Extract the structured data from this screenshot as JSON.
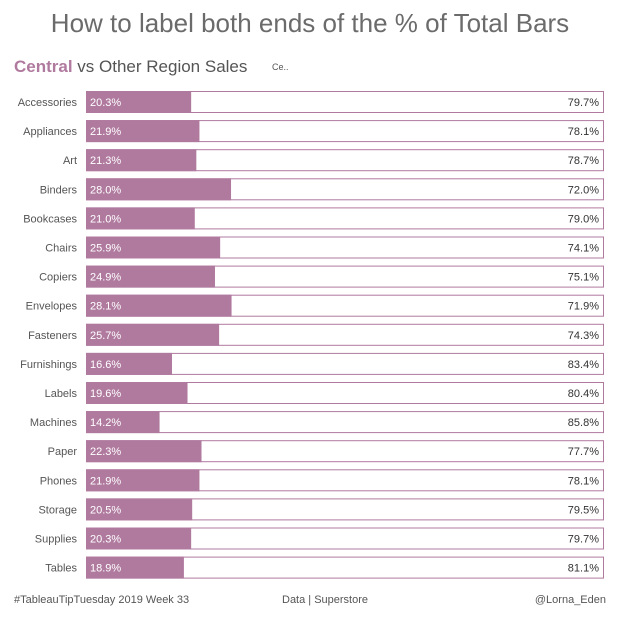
{
  "header": {
    "title": "How to label both ends of the % of Total Bars",
    "subtitle_accent": "Central",
    "subtitle_rest": " vs Other Region Sales",
    "legend_tag": "Ce.."
  },
  "footer": {
    "left": "#TableauTipTuesday 2019 Week 33",
    "middle": "Data | Superstore",
    "right": "@Lorna_Eden"
  },
  "colors": {
    "central": "#b07a9f",
    "other": "#ffffff",
    "border": "#b07a9f",
    "label_light": "#ffffff",
    "label_dark": "#333333"
  },
  "chart_data": {
    "type": "bar",
    "orientation": "horizontal",
    "stacked": "percent",
    "categories": [
      "Accessories",
      "Appliances",
      "Art",
      "Binders",
      "Bookcases",
      "Chairs",
      "Copiers",
      "Envelopes",
      "Fasteners",
      "Furnishings",
      "Labels",
      "Machines",
      "Paper",
      "Phones",
      "Storage",
      "Supplies",
      "Tables"
    ],
    "series": [
      {
        "name": "Central",
        "values": [
          20.3,
          21.9,
          21.3,
          28.0,
          21.0,
          25.9,
          24.9,
          28.1,
          25.7,
          16.6,
          19.6,
          14.2,
          22.3,
          21.9,
          20.5,
          20.3,
          18.9
        ],
        "labels": [
          "20.3%",
          "21.9%",
          "21.3%",
          "28.0%",
          "21.0%",
          "25.9%",
          "24.9%",
          "28.1%",
          "25.7%",
          "16.6%",
          "19.6%",
          "14.2%",
          "22.3%",
          "21.9%",
          "20.5%",
          "20.3%",
          "18.9%"
        ]
      },
      {
        "values": [
          79.7,
          78.1,
          78.7,
          72.0,
          79.0,
          74.1,
          75.1,
          71.9,
          74.3,
          83.4,
          80.4,
          85.8,
          77.7,
          78.1,
          79.5,
          79.7,
          81.1
        ],
        "labels": [
          "79.7%",
          "78.1%",
          "78.7%",
          "72.0%",
          "79.0%",
          "74.1%",
          "75.1%",
          "71.9%",
          "74.3%",
          "83.4%",
          "80.4%",
          "85.8%",
          "77.7%",
          "78.1%",
          "79.5%",
          "79.7%",
          "81.1%"
        ]
      }
    ],
    "xlim": [
      0,
      100
    ],
    "grid": false,
    "legend": "none"
  }
}
